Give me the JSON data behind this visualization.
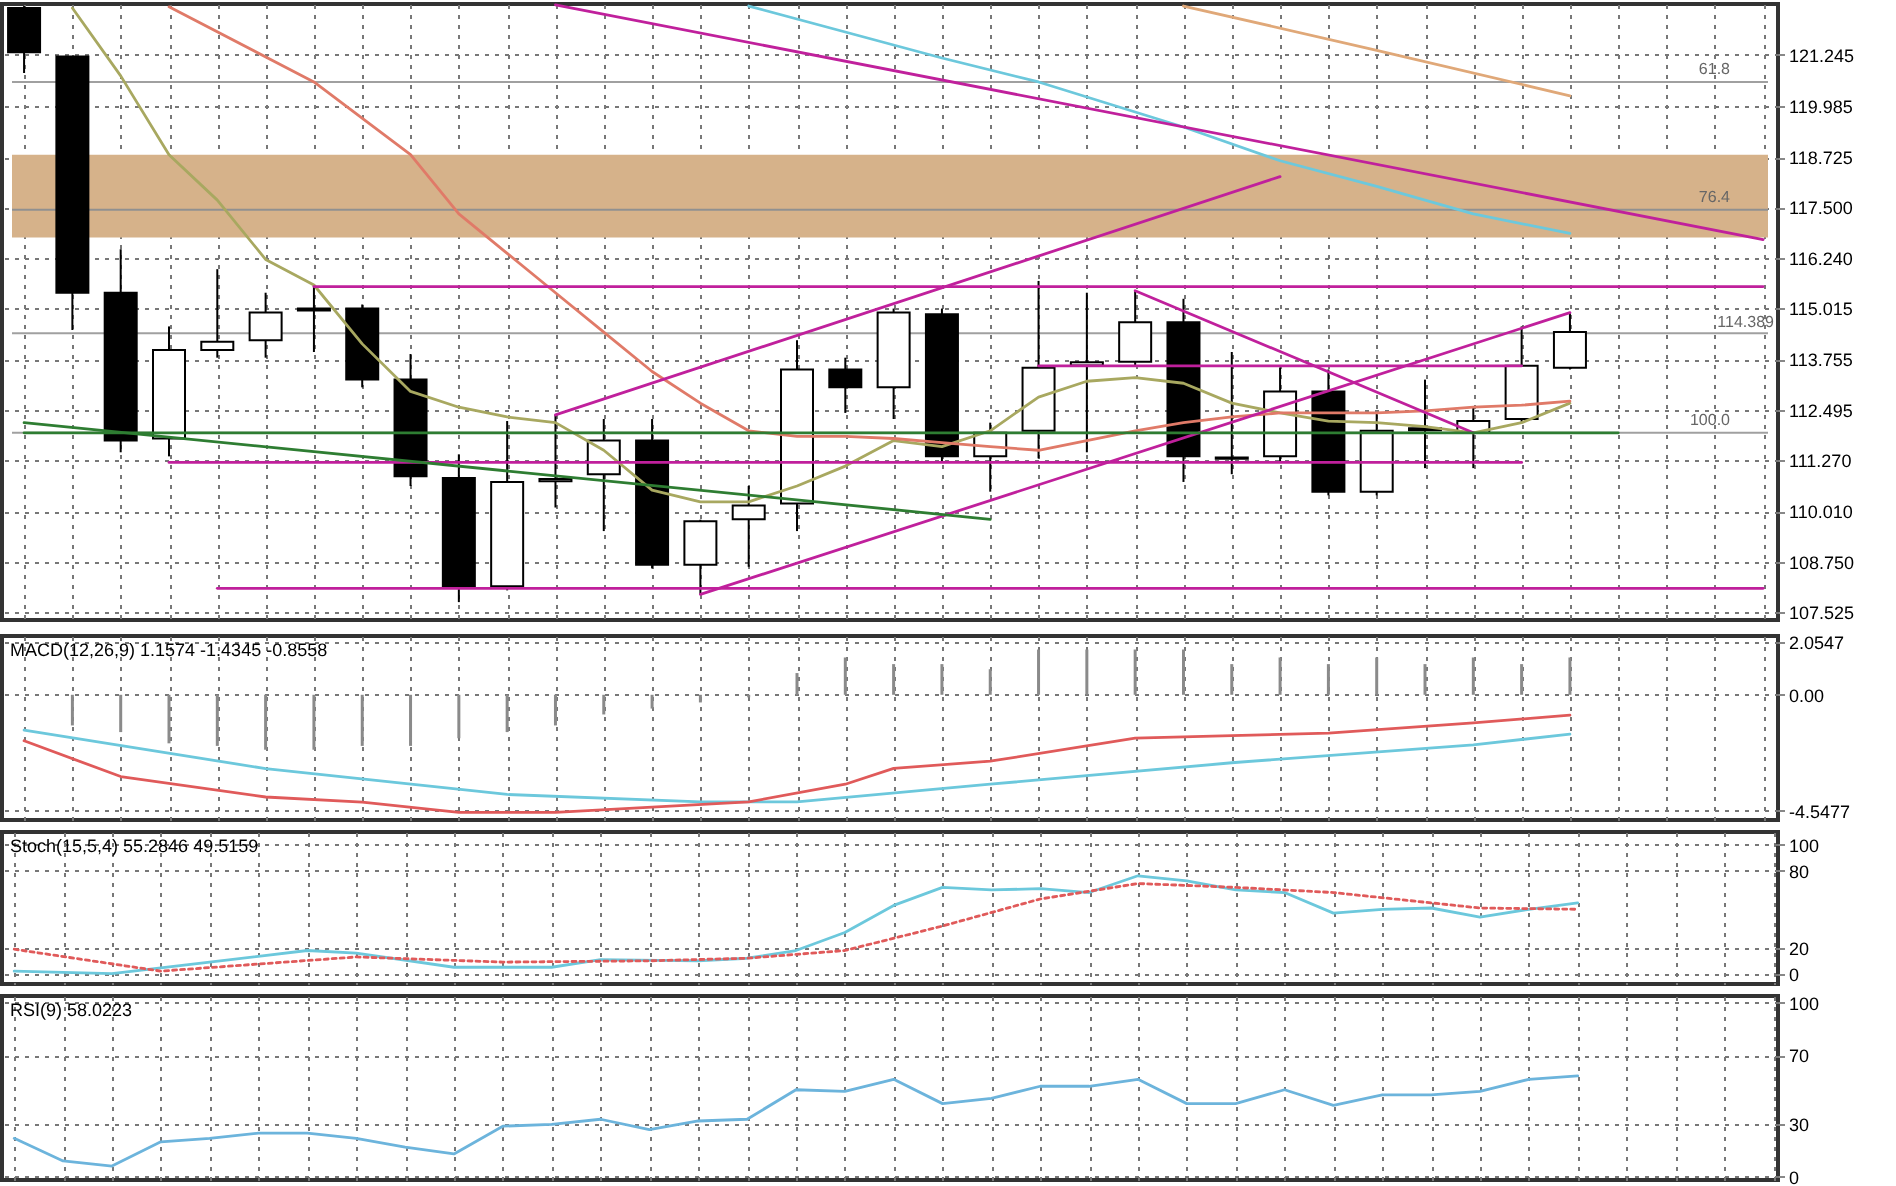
{
  "chart_data": [
    {
      "type": "candlestick",
      "categories": [
        null,
        null,
        null,
        null,
        null,
        null,
        null,
        null,
        null,
        null,
        null,
        null,
        null,
        null,
        null,
        null,
        null,
        null,
        null,
        null,
        null,
        null,
        null,
        null,
        null,
        null,
        null,
        null,
        null,
        null,
        null,
        null,
        null,
        null,
        null,
        null,
        null
      ],
      "ohlc": [
        [
          122.4,
          122.45,
          120.8,
          121.31
        ],
        [
          121.21,
          121.21,
          114.47,
          115.39
        ],
        [
          115.39,
          116.46,
          111.46,
          111.75
        ],
        [
          111.8,
          114.56,
          111.36,
          113.98
        ],
        [
          113.98,
          115.97,
          113.79,
          114.18
        ],
        [
          114.22,
          115.39,
          113.79,
          114.9
        ],
        [
          114.95,
          115.58,
          113.93,
          115.0
        ],
        [
          115.0,
          115.1,
          113.06,
          113.25
        ],
        [
          113.25,
          113.88,
          110.63,
          110.87
        ],
        [
          110.83,
          111.41,
          107.77,
          108.16
        ],
        [
          108.16,
          112.23,
          108.06,
          110.73
        ],
        [
          110.75,
          112.38,
          110.1,
          110.8
        ],
        [
          110.92,
          112.28,
          109.52,
          111.75
        ],
        [
          111.75,
          112.28,
          108.6,
          108.69
        ],
        [
          108.69,
          109.8,
          107.96,
          109.76
        ],
        [
          109.81,
          110.63,
          108.64,
          110.15
        ],
        [
          110.2,
          114.22,
          109.52,
          113.5
        ],
        [
          113.5,
          113.79,
          112.43,
          113.06
        ],
        [
          113.06,
          115.0,
          112.28,
          114.9
        ],
        [
          114.86,
          115.0,
          111.2,
          111.36
        ],
        [
          111.36,
          112.19,
          110.49,
          111.94
        ],
        [
          111.99,
          115.68,
          111.31,
          113.54
        ],
        [
          113.6,
          115.39,
          111.46,
          113.68
        ],
        [
          113.69,
          115.44,
          113.6,
          114.66
        ],
        [
          114.66,
          115.24,
          110.73,
          111.36
        ],
        [
          111.3,
          113.93,
          110.92,
          111.33
        ],
        [
          111.36,
          113.55,
          111.2,
          112.96
        ],
        [
          112.96,
          113.5,
          110.4,
          110.49
        ],
        [
          110.49,
          112.43,
          110.4,
          111.99
        ],
        [
          112.0,
          113.25,
          111.07,
          112.05
        ],
        [
          111.94,
          112.6,
          111.07,
          112.23
        ],
        [
          112.28,
          114.56,
          112.2,
          113.59
        ],
        [
          113.54,
          114.9,
          113.5,
          114.42
        ],
        null,
        null,
        null,
        null
      ],
      "series": [
        {
          "type": "line",
          "color": "#a8a860",
          "values": [
            null,
            122.4,
            120.73,
            118.79,
            117.67,
            116.21,
            115.58,
            114.13,
            112.96,
            112.57,
            112.33,
            112.19,
            111.51,
            110.53,
            110.24,
            110.24,
            110.63,
            111.12,
            111.75,
            111.6,
            111.99,
            112.82,
            113.21,
            113.3,
            113.16,
            112.67,
            112.43,
            112.23,
            112.19,
            112.09,
            111.94,
            112.19,
            112.67,
            null,
            null,
            null,
            null
          ]
        },
        {
          "type": "line",
          "color": "#e07a68",
          "values": [
            null,
            null,
            null,
            122.43,
            null,
            null,
            120.58,
            null,
            118.79,
            117.33,
            116.36,
            115.39,
            114.42,
            113.45,
            112.67,
            111.99,
            111.85,
            111.85,
            111.8,
            111.7,
            111.6,
            111.51,
            111.75,
            111.99,
            112.19,
            112.33,
            112.43,
            112.43,
            112.43,
            112.48,
            112.57,
            112.62,
            112.72,
            null,
            null,
            null,
            null
          ]
        },
        {
          "type": "line",
          "color": "#6cc8dc",
          "values": [
            null,
            null,
            null,
            null,
            null,
            null,
            null,
            null,
            null,
            null,
            null,
            null,
            null,
            null,
            null,
            122.45,
            null,
            null,
            null,
            121.17,
            null,
            120.58,
            null,
            null,
            119.47,
            null,
            118.64,
            null,
            118.01,
            null,
            117.33,
            null,
            116.85,
            null,
            null,
            null,
            null
          ]
        },
        {
          "type": "line",
          "color": "#e0a878",
          "values": [
            null,
            null,
            null,
            null,
            null,
            null,
            null,
            null,
            null,
            null,
            null,
            null,
            null,
            null,
            null,
            null,
            null,
            null,
            null,
            null,
            null,
            null,
            null,
            null,
            122.45,
            null,
            null,
            null,
            121.36,
            null,
            null,
            null,
            120.24,
            null,
            null,
            null,
            null
          ]
        },
        {
          "type": "line",
          "color": "#c0209c",
          "values": [
            null,
            null,
            null,
            null,
            null,
            null,
            null,
            null,
            null,
            null,
            null,
            122.48,
            null,
            null,
            null,
            null,
            null,
            null,
            null,
            null,
            null,
            null,
            null,
            null,
            null,
            null,
            null,
            null,
            null,
            null,
            null,
            null,
            null,
            null,
            null,
            null,
            116.7
          ]
        },
        {
          "type": "line",
          "color": "#c0209c",
          "values": [
            null,
            null,
            null,
            null,
            null,
            null,
            null,
            null,
            null,
            null,
            null,
            112.38,
            null,
            null,
            null,
            null,
            null,
            null,
            null,
            null,
            null,
            null,
            null,
            null,
            null,
            null,
            118.25,
            null,
            null,
            null,
            null,
            null,
            null,
            null,
            null,
            null,
            null
          ]
        },
        {
          "type": "line",
          "color": "#c0209c",
          "values": [
            null,
            null,
            null,
            null,
            null,
            null,
            null,
            null,
            null,
            null,
            null,
            null,
            null,
            null,
            107.96,
            null,
            null,
            null,
            null,
            null,
            null,
            null,
            null,
            null,
            null,
            null,
            null,
            null,
            null,
            null,
            null,
            null,
            114.9,
            null,
            null,
            null,
            null
          ]
        },
        {
          "type": "line",
          "color": "#c0209c",
          "values": [
            null,
            null,
            null,
            null,
            null,
            null,
            null,
            null,
            null,
            null,
            null,
            null,
            null,
            null,
            null,
            null,
            null,
            null,
            null,
            null,
            null,
            null,
            null,
            115.44,
            null,
            null,
            null,
            null,
            null,
            null,
            111.94,
            null,
            null,
            null,
            null,
            null,
            null
          ]
        },
        {
          "type": "line",
          "color": "#c0209c",
          "values": [
            null,
            null,
            null,
            null,
            null,
            null,
            115.54,
            null,
            null,
            null,
            null,
            null,
            null,
            null,
            null,
            null,
            null,
            null,
            null,
            null,
            null,
            null,
            null,
            null,
            null,
            null,
            null,
            null,
            null,
            null,
            null,
            null,
            null,
            null,
            null,
            null,
            115.54
          ]
        },
        {
          "type": "line",
          "color": "#c0209c",
          "values": [
            null,
            null,
            null,
            111.21,
            null,
            null,
            null,
            null,
            null,
            null,
            null,
            null,
            null,
            null,
            null,
            null,
            null,
            null,
            null,
            null,
            null,
            null,
            null,
            null,
            null,
            null,
            null,
            null,
            null,
            null,
            null,
            111.21,
            null,
            null,
            null,
            null,
            null
          ]
        },
        {
          "type": "line",
          "color": "#c0209c",
          "values": [
            null,
            null,
            null,
            null,
            108.11,
            null,
            null,
            null,
            null,
            null,
            null,
            null,
            null,
            null,
            null,
            null,
            null,
            null,
            null,
            null,
            null,
            null,
            null,
            null,
            null,
            null,
            null,
            null,
            null,
            null,
            null,
            null,
            null,
            null,
            null,
            null,
            108.11
          ]
        },
        {
          "type": "line",
          "color": "#c0209c",
          "values": [
            null,
            null,
            null,
            null,
            null,
            null,
            null,
            null,
            null,
            null,
            null,
            null,
            null,
            null,
            null,
            null,
            null,
            null,
            null,
            null,
            null,
            113.59,
            null,
            null,
            null,
            null,
            null,
            null,
            null,
            null,
            null,
            113.59,
            null,
            null,
            null,
            null,
            null
          ]
        },
        {
          "type": "line",
          "color": "#2e7d32",
          "values": [
            112.19,
            null,
            null,
            null,
            null,
            null,
            null,
            null,
            null,
            null,
            null,
            null,
            null,
            null,
            null,
            null,
            null,
            null,
            null,
            null,
            109.81,
            null,
            null,
            null,
            null,
            null,
            null,
            null,
            null,
            null,
            null,
            null,
            null,
            null,
            null,
            null,
            null
          ]
        },
        {
          "type": "line",
          "color": "#2e7d32",
          "values": [
            111.94,
            null,
            null,
            null,
            null,
            null,
            null,
            null,
            null,
            null,
            null,
            null,
            null,
            null,
            null,
            null,
            null,
            null,
            null,
            null,
            null,
            null,
            null,
            null,
            null,
            null,
            null,
            null,
            null,
            null,
            null,
            null,
            null,
            111.94,
            null,
            null,
            null
          ]
        }
      ],
      "bands": [
        {
          "axis": "y",
          "from": 116.75,
          "to": 118.79,
          "color": "#d6b28a"
        }
      ],
      "ref_lines": [
        {
          "axis": "y",
          "value": 120.58,
          "color": "#a0a0a0"
        },
        {
          "axis": "y",
          "value": 117.43,
          "color": "#909090"
        },
        {
          "axis": "y",
          "value": 111.94,
          "color": "#a0a0a0"
        },
        {
          "axis": "y",
          "value": 114.389,
          "label": "114.389",
          "color": "#a0a0a0"
        }
      ],
      "annotations": [
        {
          "text": "61.8",
          "y": 120.58
        },
        {
          "text": "76.4",
          "y": 117.43
        },
        {
          "text": "100.0",
          "y": 111.94
        }
      ],
      "ylim": [
        107.33,
        122.5
      ],
      "yticks": [
        121.245,
        119.985,
        118.725,
        {
          "value": 117.5,
          "label": "117.500"
        },
        {
          "value": 116.24,
          "label": "116.240"
        },
        115.015,
        113.755,
        112.495,
        {
          "value": 111.27,
          "label": "111.270"
        },
        {
          "value": 110.01,
          "label": "110.010"
        },
        {
          "value": 108.75,
          "label": "108.750"
        },
        107.525
      ],
      "grid": true,
      "tick_labels": "y"
    },
    {
      "type": "line",
      "title": "MACD(12,26,9) 1.1574 -1.4345 -0.8558",
      "categories": [
        null,
        null,
        null,
        null,
        null,
        null,
        null,
        null,
        null,
        null,
        null,
        null,
        null,
        null,
        null,
        null,
        null,
        null,
        null,
        null,
        null,
        null,
        null,
        null,
        null,
        null,
        null,
        null,
        null,
        null,
        null,
        null,
        null,
        null,
        null,
        null,
        null
      ],
      "series": [
        {
          "type": "bar",
          "color": "#8a8a8a",
          "values": [
            null,
            -1.2,
            -1.46,
            -1.9,
            -2.0,
            -2.15,
            -2.15,
            -2.0,
            -2.0,
            -1.7,
            -1.46,
            -1.2,
            -0.77,
            -0.54,
            -0.3,
            -0.1,
            0.85,
            1.46,
            1.2,
            1.2,
            1.0,
            1.77,
            1.77,
            1.77,
            1.77,
            1.2,
            1.46,
            1.2,
            1.46,
            1.2,
            1.46,
            1.2,
            1.46,
            null,
            null,
            null,
            null
          ]
        },
        {
          "color": "#6cc8dc",
          "values": [
            -1.38,
            null,
            null,
            null,
            null,
            -2.89,
            null,
            null,
            null,
            null,
            -3.9,
            null,
            null,
            null,
            -4.19,
            null,
            -4.19,
            null,
            null,
            null,
            -3.5,
            null,
            null,
            null,
            null,
            -2.66,
            null,
            null,
            null,
            null,
            -1.96,
            null,
            -1.54,
            null,
            null,
            null,
            null
          ]
        },
        {
          "color": "#e05a5a",
          "values": [
            -1.8,
            null,
            -3.2,
            null,
            null,
            -4.0,
            null,
            -4.2,
            null,
            -4.6,
            null,
            -4.6,
            null,
            -4.4,
            null,
            -4.19,
            null,
            -3.5,
            -2.88,
            null,
            -2.6,
            null,
            null,
            -1.7,
            null,
            -1.6,
            null,
            -1.5,
            null,
            null,
            -1.1,
            null,
            -0.8,
            null,
            null,
            null,
            null
          ]
        }
      ],
      "ylim": [
        -4.9,
        2.3
      ],
      "yticks": [
        2.0547,
        {
          "value": 0,
          "label": "0.00"
        },
        -4.5477
      ],
      "grid": true,
      "tick_labels": "y"
    },
    {
      "type": "line",
      "title": "Stoch(15,5,4) 55.2846 49.5159",
      "categories": [
        null,
        null,
        null,
        null,
        null,
        null,
        null,
        null,
        null,
        null,
        null,
        null,
        null,
        null,
        null,
        null,
        null,
        null,
        null,
        null,
        null,
        null,
        null,
        null,
        null,
        null,
        null,
        null,
        null,
        null,
        null,
        null,
        null,
        null,
        null,
        null,
        null
      ],
      "series": [
        {
          "color": "#6cc8dc",
          "values": [
            2,
            null,
            0,
            null,
            9,
            null,
            18,
            16,
            null,
            5,
            null,
            5,
            11,
            null,
            10,
            12,
            18,
            32,
            53,
            67,
            65,
            66,
            63,
            76,
            72,
            65,
            63,
            47,
            50,
            51,
            44,
            50,
            55,
            null,
            null,
            null,
            null
          ]
        },
        {
          "color": "#e05a5a",
          "line_style": "dotted",
          "values": [
            19,
            null,
            null,
            2,
            null,
            null,
            null,
            13,
            null,
            null,
            9,
            null,
            null,
            10,
            null,
            12,
            null,
            18,
            null,
            37,
            null,
            58,
            null,
            70,
            null,
            67,
            null,
            63,
            null,
            null,
            51,
            null,
            50,
            null,
            null,
            null,
            null
          ]
        }
      ],
      "ylim": [
        -8,
        110
      ],
      "yticks": [
        100,
        80,
        20,
        0
      ],
      "grid": true,
      "tick_labels": "y"
    },
    {
      "type": "line",
      "title": "RSI(9) 58.0223",
      "categories": [
        null,
        null,
        null,
        null,
        null,
        null,
        null,
        null,
        null,
        null,
        null,
        null,
        null,
        null,
        null,
        null,
        null,
        null,
        null,
        null,
        null,
        null,
        null,
        null,
        null,
        null,
        null,
        null,
        null,
        null,
        null,
        null,
        null,
        null,
        null,
        null,
        null
      ],
      "series": [
        {
          "color": "#6cb4dc",
          "values": [
            22,
            9,
            6,
            20,
            22,
            25,
            25,
            22,
            17,
            13,
            29,
            30,
            33,
            27,
            32,
            33,
            50,
            49,
            56,
            42,
            45,
            52,
            52,
            56,
            42,
            42,
            50,
            41,
            47,
            47,
            49,
            56,
            58,
            null,
            null,
            null,
            null
          ]
        }
      ],
      "ylim": [
        -2,
        104
      ],
      "yticks": [
        100,
        70,
        30,
        0
      ],
      "grid": true,
      "tick_labels": "y"
    }
  ]
}
